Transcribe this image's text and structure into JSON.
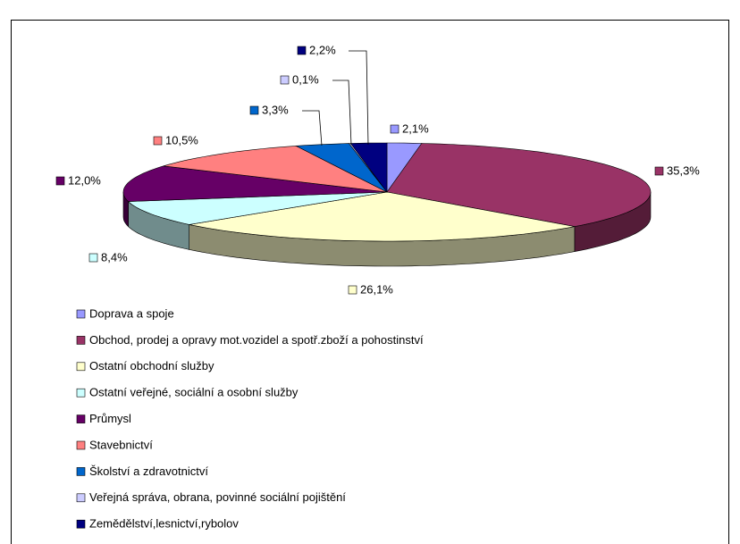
{
  "chart_data": {
    "type": "pie",
    "categories": [
      "Doprava a spoje",
      "Obchod, prodej a opravy mot.vozidel a spotř.zboží a pohostinství",
      "Ostatní obchodní služby",
      "Ostatní veřejné, sociální a osobní služby",
      "Průmysl",
      "Stavebnictví",
      "Školství a zdravotnictví",
      "Veřejná správa, obrana, povinné sociální pojištění",
      "Zemědělství,lesnictví,rybolov"
    ],
    "values": [
      2.1,
      35.3,
      26.1,
      8.4,
      12.0,
      10.5,
      3.3,
      0.1,
      2.2
    ],
    "value_labels": [
      "2,1%",
      "35,3%",
      "26,1%",
      "8,4%",
      "12,0%",
      "10,5%",
      "3,3%",
      "0,1%",
      "2,2%"
    ],
    "colors": [
      "#9999ff",
      "#993366",
      "#ffffcc",
      "#ccffff",
      "#660066",
      "#ff8080",
      "#0066cc",
      "#ccccff",
      "#000080"
    ],
    "legend": "bottom"
  }
}
